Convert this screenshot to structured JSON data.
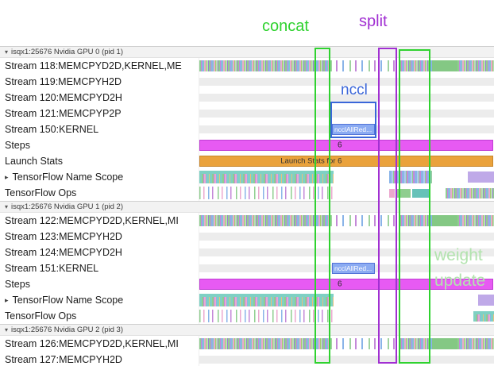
{
  "icons": {
    "collapse": "▾",
    "expand": "▸"
  },
  "annotations": {
    "concat": "concat",
    "split": "split",
    "nccl": "nccl",
    "weight_line1": "weight",
    "weight_line2": "update"
  },
  "colors": {
    "concat_green": "#2fd22f",
    "split_purple": "#a12fd2",
    "nccl_blue": "#3a66d9",
    "weight_update_green": "#b2e3ae",
    "steps_magenta": "#e75af3",
    "launch_stats_orange": "#eaa23c",
    "nccl_bar_blue": "#8babf2"
  },
  "sections": [
    {
      "header": "isqx1:25676 Nvidia GPU 0 (pid 1)",
      "rows": [
        {
          "label": "Stream 118:MEMCPYD2D,KERNEL,ME"
        },
        {
          "label": "Stream 119:MEMCPYH2D"
        },
        {
          "label": "Stream 120:MEMCPYD2H"
        },
        {
          "label": "Stream 121:MEMCPYP2P"
        },
        {
          "label": "Stream 150:KERNEL",
          "event": "ncclAllRed..."
        },
        {
          "label": "Steps",
          "event": "6"
        },
        {
          "label": "Launch Stats",
          "event": "Launch Stats for 6"
        },
        {
          "label": "TensorFlow Name Scope"
        },
        {
          "label": "TensorFlow Ops"
        }
      ]
    },
    {
      "header": "isqx1:25676 Nvidia GPU 1 (pid 2)",
      "rows": [
        {
          "label": "Stream 122:MEMCPYD2D,KERNEL,MI"
        },
        {
          "label": "Stream 123:MEMCPYH2D"
        },
        {
          "label": "Stream 124:MEMCPYD2H"
        },
        {
          "label": "Stream 151:KERNEL",
          "event": "ncclAllRed..."
        },
        {
          "label": "Steps",
          "event": "6"
        },
        {
          "label": "TensorFlow Name Scope"
        },
        {
          "label": "TensorFlow Ops"
        }
      ]
    },
    {
      "header": "isqx1:25676 Nvidia GPU 2 (pid 3)",
      "rows": [
        {
          "label": "Stream 126:MEMCPYD2D,KERNEL,MI"
        },
        {
          "label": "Stream 127:MEMCPYH2D"
        }
      ]
    }
  ]
}
